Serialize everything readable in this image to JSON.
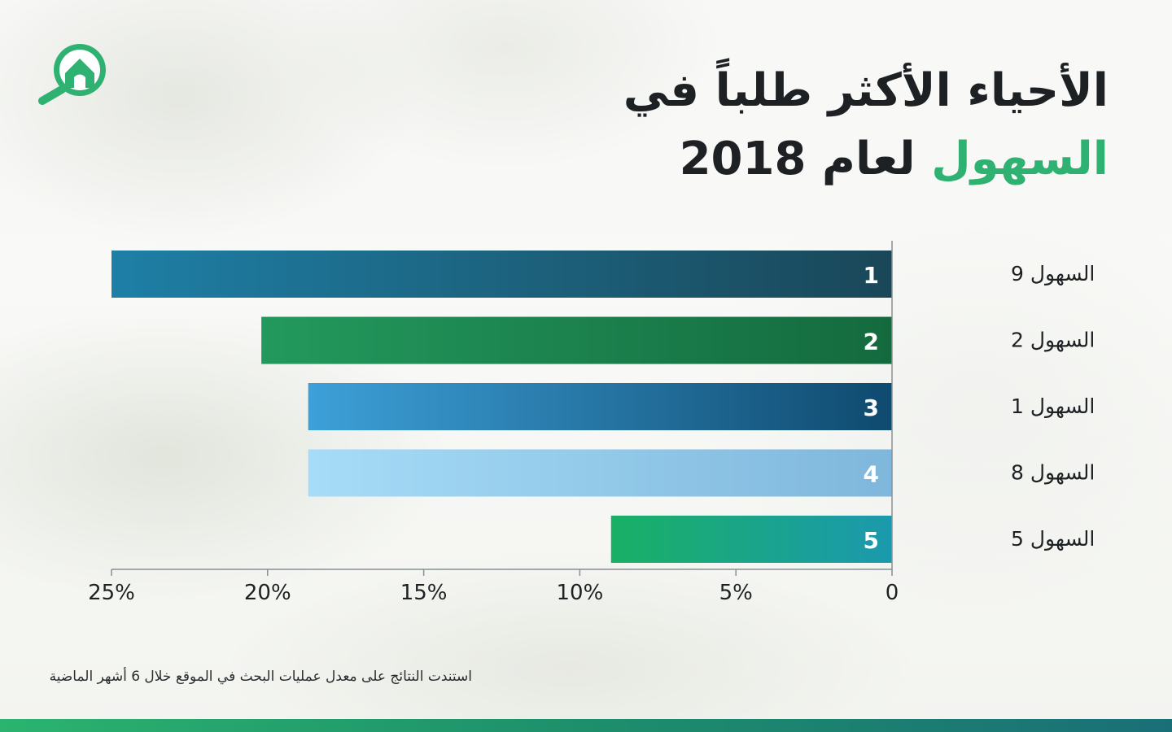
{
  "title": {
    "line1": "الأحياء الأكثر طلباً في",
    "accent": "السهول",
    "rest": " لعام 2018"
  },
  "colors": {
    "accent": "#2fb271",
    "title": "#1e2124",
    "logo": "#2fb271"
  },
  "logo": {
    "icon": "house-search-icon"
  },
  "chart_data": {
    "type": "bar",
    "orientation": "horizontal",
    "direction": "right-to-left",
    "categories": [
      "السهول 9",
      "السهول 2",
      "السهول 1",
      "السهول 8",
      "السهول 5"
    ],
    "ranks": [
      "1",
      "2",
      "3",
      "4",
      "5"
    ],
    "values": [
      25,
      20.2,
      18.7,
      18.7,
      9
    ],
    "xlim": [
      0,
      25
    ],
    "ticks": [
      0,
      5,
      10,
      15,
      20,
      25
    ],
    "tick_labels": [
      "0",
      "5%",
      "10%",
      "15%",
      "20%",
      "25%"
    ],
    "bar_gradients": [
      [
        "#1a4758",
        "#1e7fa6"
      ],
      [
        "#146a3e",
        "#23995d"
      ],
      [
        "#0f4a6f",
        "#3da0d8"
      ],
      [
        "#7fb7dc",
        "#a6dcf7"
      ],
      [
        "#1b99ae",
        "#19b065"
      ]
    ],
    "title": "",
    "xlabel": "",
    "ylabel": "",
    "grid": false
  },
  "footnote": "استندت النتائج على معدل عمليات البحث في الموقع خلال 6 أشهر الماضية"
}
